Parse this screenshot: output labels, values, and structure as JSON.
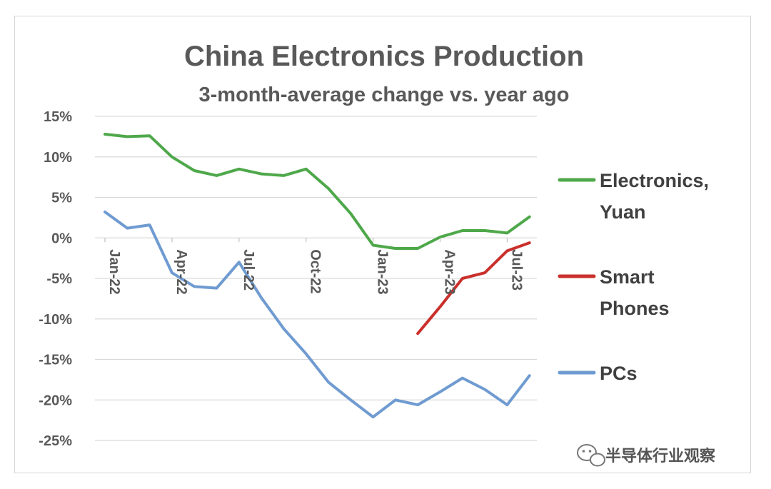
{
  "chart_data": {
    "type": "line",
    "title": "China Electronics Production",
    "subtitle": "3-month-average change vs. year ago",
    "xlabel": "",
    "ylabel": "",
    "ylim": [
      -25,
      15
    ],
    "y_ticks": [
      15,
      10,
      5,
      0,
      -5,
      -10,
      -15,
      -20,
      -25
    ],
    "y_tick_labels": [
      "15%",
      "10%",
      "5%",
      "0%",
      "-5%",
      "-10%",
      "-15%",
      "-20%",
      "-25%"
    ],
    "x": [
      "Jan-22",
      "Feb-22",
      "Mar-22",
      "Apr-22",
      "May-22",
      "Jun-22",
      "Jul-22",
      "Aug-22",
      "Sep-22",
      "Oct-22",
      "Nov-22",
      "Dec-22",
      "Jan-23",
      "Feb-23",
      "Mar-23",
      "Apr-23",
      "May-23",
      "Jun-23",
      "Jul-23",
      "Aug-23"
    ],
    "x_tick_labels": [
      {
        "index": 0,
        "label": "Jan-22"
      },
      {
        "index": 3,
        "label": "Apr-22"
      },
      {
        "index": 6,
        "label": "Jul-22"
      },
      {
        "index": 9,
        "label": "Oct-22"
      },
      {
        "index": 12,
        "label": "Jan-23"
      },
      {
        "index": 15,
        "label": "Apr-23"
      },
      {
        "index": 18,
        "label": "Jul-23"
      }
    ],
    "series": [
      {
        "name": "Electronics, Yuan",
        "legend_lines": [
          "Electronics,",
          "Yuan"
        ],
        "color": "#4ea84a",
        "values": [
          12.8,
          12.5,
          12.6,
          10.0,
          8.3,
          7.7,
          8.5,
          7.9,
          7.7,
          8.5,
          6.1,
          3.0,
          -0.9,
          -1.3,
          -1.3,
          0.1,
          0.9,
          0.9,
          0.6,
          2.6
        ]
      },
      {
        "name": "Smart Phones",
        "legend_lines": [
          "Smart",
          "Phones"
        ],
        "color": "#c9302c",
        "values": [
          null,
          null,
          null,
          null,
          null,
          null,
          null,
          null,
          null,
          null,
          null,
          null,
          null,
          null,
          -11.8,
          -8.5,
          -5.0,
          -4.3,
          -1.6,
          -0.6
        ]
      },
      {
        "name": "PCs",
        "legend_lines": [
          "PCs"
        ],
        "color": "#6f9bd1",
        "values": [
          3.2,
          1.2,
          1.6,
          -4.3,
          -6.0,
          -6.2,
          -3.0,
          -7.4,
          -11.2,
          -14.3,
          -17.8,
          -20.0,
          -22.1,
          -20.0,
          -20.6,
          -19.0,
          -17.3,
          -18.7,
          -20.6,
          -17.0
        ]
      }
    ],
    "legend_position": "right",
    "grid": true
  },
  "watermark": {
    "icon": "wechat-icon",
    "text": "半导体行业观察"
  }
}
